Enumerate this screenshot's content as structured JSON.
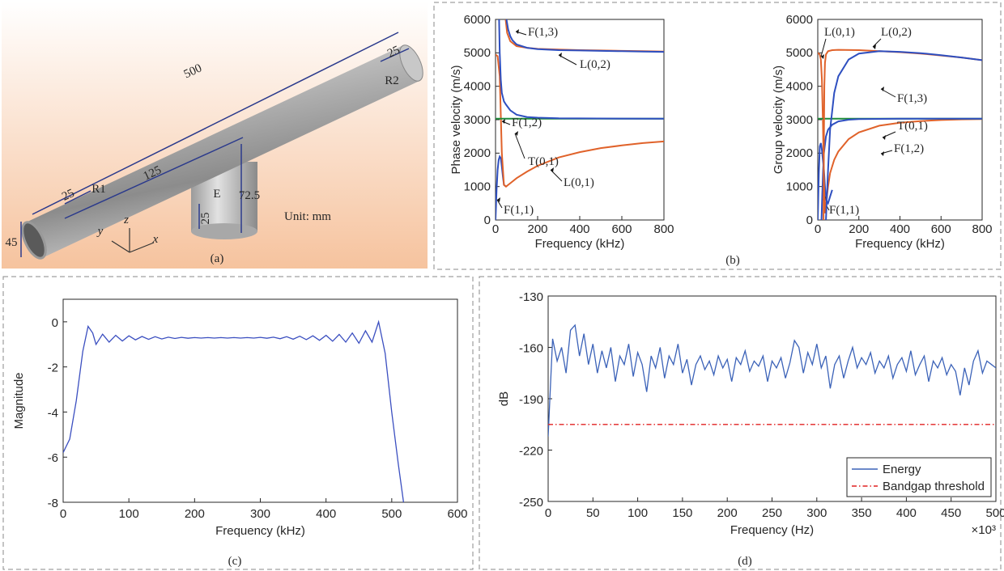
{
  "figure_a": {
    "labels": [
      "500",
      "25",
      "R2",
      "45",
      "25",
      "R1",
      "125",
      "72.5",
      "E",
      "25",
      "Unit: mm",
      "y",
      "z",
      "x"
    ],
    "caption": "(a)"
  },
  "chart_data": [
    {
      "type": "line",
      "ylabel": "Phase velocity (m/s)",
      "xlabel": "Frequency (kHz)",
      "xlim": [
        0,
        800
      ],
      "xticks": [
        0,
        200,
        400,
        600,
        800
      ],
      "ylim": [
        0,
        6000
      ],
      "yticks": [
        0,
        1000,
        2000,
        3000,
        4000,
        5000,
        6000
      ],
      "annotation_color": "#d42020",
      "series": [
        {
          "name": "F(1,1)",
          "color": "#2e4fc0",
          "x": [
            0,
            5,
            10,
            15,
            20,
            25,
            30,
            35,
            40,
            50
          ],
          "values": [
            0,
            900,
            1500,
            1800,
            1900,
            1850,
            1600,
            1300,
            1050,
            1000
          ]
        },
        {
          "name": "L(0,1)",
          "color": "#e0622a",
          "x": [
            0,
            10,
            20,
            30,
            40,
            50,
            60,
            80,
            100,
            150,
            200,
            300,
            400,
            500,
            600,
            700,
            800
          ],
          "values": [
            4950,
            4900,
            4300,
            2000,
            1050,
            1000,
            1050,
            1150,
            1250,
            1450,
            1620,
            1870,
            2030,
            2150,
            2230,
            2300,
            2350
          ]
        },
        {
          "name": "T(0,1)",
          "color": "#1e8c3a",
          "x": [
            0,
            800
          ],
          "values": [
            3030,
            3030
          ]
        },
        {
          "name": "F(1,2)",
          "color": "#2e4fc0",
          "x": [
            17,
            20,
            25,
            30,
            40,
            50,
            70,
            100,
            150,
            200,
            300,
            800
          ],
          "values": [
            6000,
            5000,
            4200,
            3800,
            3550,
            3450,
            3280,
            3150,
            3080,
            3060,
            3040,
            3030
          ]
        },
        {
          "name": "L(0,2)",
          "color": "#e0622a",
          "x": [
            48,
            55,
            70,
            100,
            150,
            200,
            300,
            400,
            500,
            600,
            700,
            800
          ],
          "values": [
            6000,
            5600,
            5350,
            5200,
            5150,
            5120,
            5100,
            5080,
            5070,
            5060,
            5050,
            5040
          ]
        },
        {
          "name": "F(1,3)",
          "color": "#2e4fc0",
          "x": [
            52,
            60,
            70,
            80,
            100,
            150,
            200,
            300,
            400,
            500,
            600,
            700,
            800
          ],
          "values": [
            6000,
            5700,
            5500,
            5380,
            5250,
            5150,
            5110,
            5080,
            5070,
            5060,
            5050,
            5040,
            5030
          ]
        }
      ]
    },
    {
      "type": "line",
      "ylabel": "Group velocity (m/s)",
      "xlabel": "Frequency (kHz)",
      "caption": "(b)",
      "xlim": [
        0,
        800
      ],
      "xticks": [
        0,
        200,
        400,
        600,
        800
      ],
      "ylim": [
        0,
        6000
      ],
      "yticks": [
        0,
        1000,
        2000,
        3000,
        4000,
        5000,
        6000
      ],
      "annotation_color": "#d42020",
      "series": [
        {
          "name": "F(1,1)",
          "color": "#2e4fc0",
          "x": [
            0,
            5,
            10,
            15,
            20,
            25,
            30,
            35,
            40,
            50,
            60,
            70
          ],
          "values": [
            0,
            1400,
            2200,
            2300,
            2100,
            1800,
            1500,
            1000,
            600,
            500,
            700,
            900
          ]
        },
        {
          "name": "L(0,1)",
          "color": "#e0622a",
          "x": [
            0,
            10,
            15,
            20,
            25,
            30,
            35,
            40,
            50,
            60,
            80,
            100,
            150,
            200,
            300,
            400,
            500,
            600,
            700,
            800
          ],
          "values": [
            5000,
            4950,
            4800,
            4200,
            3000,
            1200,
            200,
            450,
            1000,
            1400,
            1800,
            2050,
            2420,
            2620,
            2820,
            2910,
            2960,
            2990,
            3010,
            3020
          ]
        },
        {
          "name": "T(0,1)",
          "color": "#1e8c3a",
          "x": [
            0,
            800
          ],
          "values": [
            3030,
            3030
          ]
        },
        {
          "name": "F(1,2)",
          "color": "#2e4fc0",
          "x": [
            18,
            22,
            26,
            30,
            40,
            50,
            70,
            100,
            150,
            200,
            400,
            800
          ],
          "values": [
            0,
            800,
            1500,
            2000,
            2500,
            2700,
            2850,
            2950,
            3000,
            3020,
            3030,
            3030
          ]
        },
        {
          "name": "L(0,2)",
          "color": "#e0622a",
          "x": [
            28,
            30,
            32,
            35,
            40,
            50,
            70,
            100,
            200,
            300,
            400,
            500,
            600,
            700,
            800
          ],
          "values": [
            0,
            2500,
            4000,
            4700,
            4950,
            5050,
            5080,
            5090,
            5080,
            5050,
            5020,
            4980,
            4920,
            4860,
            4780
          ]
        },
        {
          "name": "F(1,3)",
          "color": "#2e4fc0",
          "x": [
            40,
            45,
            50,
            60,
            80,
            100,
            150,
            200,
            300,
            400,
            500,
            600,
            700,
            800
          ],
          "values": [
            0,
            800,
            1500,
            2700,
            3800,
            4300,
            4800,
            4980,
            5050,
            5030,
            4990,
            4930,
            4860,
            4780
          ]
        }
      ]
    },
    {
      "type": "line",
      "ylabel": "Magnitude",
      "xlabel": "Frequency (kHz)",
      "caption": "(c)",
      "xlim": [
        0,
        600
      ],
      "xticks": [
        0,
        100,
        200,
        300,
        400,
        500,
        600
      ],
      "ylim": [
        -8,
        1
      ],
      "yticks": [
        -8,
        -6,
        -4,
        -2,
        0
      ],
      "series": [
        {
          "name": "Magnitude",
          "color": "#3b4fc0",
          "x": [
            0,
            10,
            20,
            30,
            38,
            45,
            50,
            60,
            70,
            80,
            90,
            100,
            110,
            120,
            130,
            140,
            150,
            160,
            170,
            180,
            190,
            200,
            210,
            220,
            230,
            240,
            250,
            260,
            270,
            280,
            290,
            300,
            310,
            320,
            330,
            340,
            350,
            360,
            370,
            380,
            390,
            400,
            410,
            420,
            430,
            440,
            450,
            460,
            470,
            480,
            490,
            500,
            510,
            518
          ],
          "values": [
            -5.8,
            -5.2,
            -3.5,
            -1.3,
            -0.2,
            -0.5,
            -1.0,
            -0.55,
            -0.9,
            -0.6,
            -0.85,
            -0.62,
            -0.8,
            -0.65,
            -0.78,
            -0.66,
            -0.76,
            -0.68,
            -0.74,
            -0.69,
            -0.73,
            -0.7,
            -0.72,
            -0.7,
            -0.72,
            -0.7,
            -0.72,
            -0.7,
            -0.72,
            -0.7,
            -0.72,
            -0.69,
            -0.73,
            -0.68,
            -0.75,
            -0.66,
            -0.77,
            -0.64,
            -0.79,
            -0.62,
            -0.82,
            -0.6,
            -0.86,
            -0.56,
            -0.9,
            -0.5,
            -0.95,
            -0.4,
            -0.9,
            0,
            -1.4,
            -4,
            -6.3,
            -8
          ]
        }
      ]
    },
    {
      "type": "line",
      "ylabel": "dB",
      "xlabel": "Frequency (Hz)",
      "x_multiplier": "×10³",
      "caption": "(d)",
      "legend": "lower right",
      "xlim": [
        0,
        500
      ],
      "xticks": [
        0,
        50,
        100,
        150,
        200,
        250,
        300,
        350,
        400,
        450,
        500
      ],
      "ylim": [
        -250,
        -130
      ],
      "yticks": [
        -250,
        -220,
        -190,
        -160,
        -130
      ],
      "series": [
        {
          "name": "Energy",
          "color": "#3b62b8",
          "x": [
            0,
            5,
            10,
            15,
            20,
            25,
            30,
            35,
            40,
            45,
            50,
            55,
            60,
            65,
            70,
            75,
            80,
            85,
            90,
            95,
            100,
            105,
            110,
            115,
            120,
            125,
            130,
            135,
            140,
            145,
            150,
            155,
            160,
            165,
            170,
            175,
            180,
            185,
            190,
            195,
            200,
            205,
            210,
            215,
            220,
            225,
            230,
            235,
            240,
            245,
            250,
            255,
            260,
            265,
            270,
            275,
            280,
            285,
            290,
            295,
            300,
            305,
            310,
            315,
            320,
            325,
            330,
            335,
            340,
            345,
            350,
            355,
            360,
            365,
            370,
            375,
            380,
            385,
            390,
            395,
            400,
            405,
            410,
            415,
            420,
            425,
            430,
            435,
            440,
            445,
            450,
            455,
            460,
            465,
            470,
            475,
            480,
            485,
            490,
            495,
            500
          ],
          "values": [
            -212,
            -155,
            -168,
            -160,
            -175,
            -150,
            -147,
            -165,
            -152,
            -170,
            -158,
            -175,
            -162,
            -172,
            -160,
            -180,
            -165,
            -170,
            -158,
            -177,
            -163,
            -170,
            -186,
            -165,
            -172,
            -160,
            -178,
            -165,
            -170,
            -158,
            -175,
            -167,
            -182,
            -170,
            -165,
            -173,
            -168,
            -176,
            -165,
            -172,
            -167,
            -180,
            -166,
            -170,
            -162,
            -174,
            -168,
            -171,
            -165,
            -180,
            -168,
            -172,
            -166,
            -178,
            -169,
            -156,
            -160,
            -175,
            -163,
            -170,
            -158,
            -172,
            -165,
            -184,
            -170,
            -165,
            -178,
            -168,
            -160,
            -172,
            -166,
            -170,
            -163,
            -175,
            -168,
            -172,
            -165,
            -178,
            -170,
            -166,
            -174,
            -162,
            -176,
            -170,
            -165,
            -180,
            -168,
            -172,
            -166,
            -176,
            -170,
            -174,
            -188,
            -172,
            -182,
            -168,
            -162,
            -175,
            -168,
            -170,
            -172
          ]
        },
        {
          "name": "Bandgap threshold",
          "color": "#e02020",
          "dash": "6 3 1.5 3",
          "x": [
            0,
            500
          ],
          "values": [
            -205,
            -205
          ]
        }
      ]
    }
  ]
}
